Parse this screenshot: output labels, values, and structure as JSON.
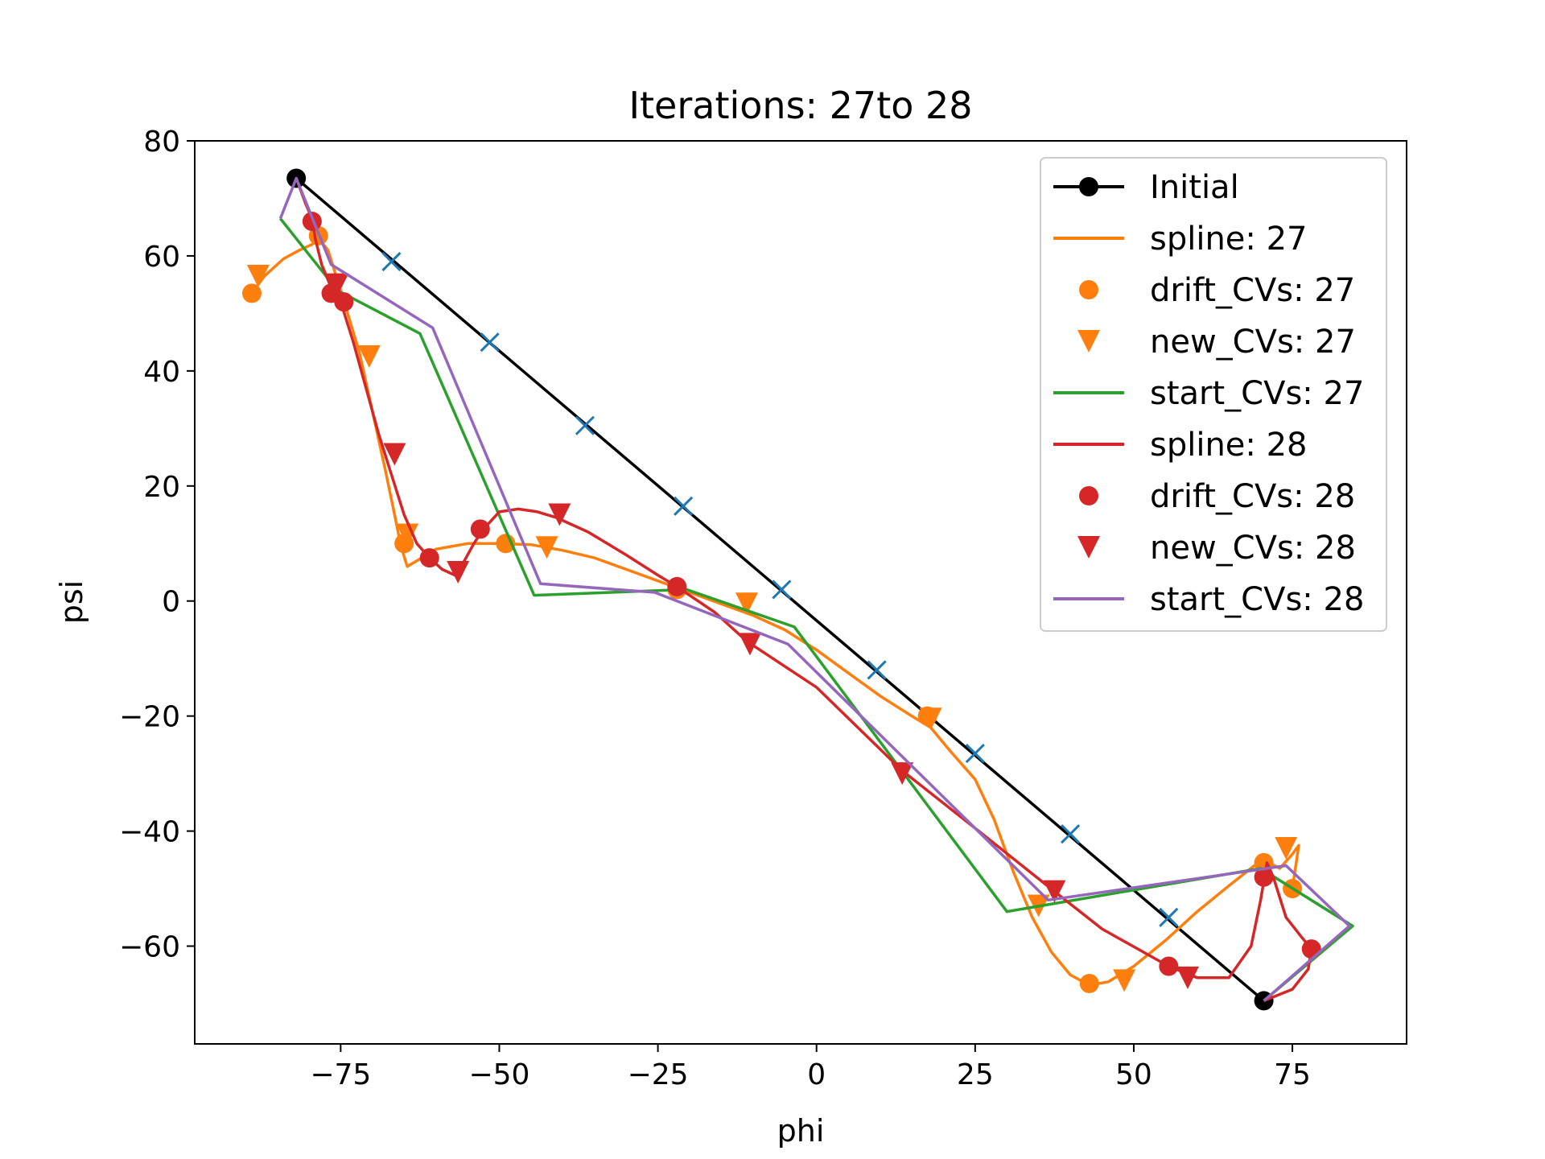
{
  "chart_data": {
    "type": "line",
    "title": "Iterations: 27to 28",
    "xlabel": "phi",
    "ylabel": "psi",
    "xlim": [
      -98,
      93
    ],
    "ylim": [
      -77,
      80
    ],
    "xticks": [
      -75,
      -50,
      -25,
      0,
      25,
      50,
      75
    ],
    "xtick_labels": [
      "−75",
      "−50",
      "−25",
      "0",
      "25",
      "50",
      "75"
    ],
    "yticks": [
      -60,
      -40,
      -20,
      0,
      20,
      40,
      60,
      80
    ],
    "ytick_labels": [
      "−60",
      "−40",
      "−20",
      "0",
      "20",
      "40",
      "60",
      "80"
    ],
    "legend_position": "top-right",
    "series": [
      {
        "name": "Initial",
        "kind": "line-marker",
        "color": "#000000",
        "x": [
          -82,
          70.5
        ],
        "y": [
          73.5,
          -69.5
        ]
      },
      {
        "name": "",
        "kind": "markers-x",
        "color": "#1f77b4",
        "x": [
          -67,
          -51.5,
          -36.5,
          -21,
          -5.5,
          9.5,
          25,
          40,
          55.5
        ],
        "y": [
          59,
          45,
          30.5,
          16.5,
          2,
          -12,
          -26.5,
          -40.5,
          -55
        ]
      },
      {
        "name": "spline: 27",
        "kind": "line",
        "color": "#ff7f0e",
        "x": [
          -89,
          -87,
          -84,
          -81.5,
          -79.5,
          -78.5,
          -77,
          -75,
          -72,
          -70,
          -68,
          -66.5,
          -65.5,
          -64.5,
          -63,
          -60,
          -55,
          -50,
          -45,
          -40,
          -35,
          -30,
          -25,
          -20,
          -15,
          -10,
          -5,
          0,
          5,
          10,
          15,
          18,
          21,
          25,
          28,
          31,
          34,
          37,
          40,
          43,
          46,
          50,
          55,
          60,
          65,
          69,
          71,
          73,
          75,
          76,
          75
        ],
        "y": [
          53.5,
          56.5,
          59.5,
          61,
          62,
          63,
          61,
          54,
          43,
          33,
          23,
          15,
          9.5,
          6,
          7,
          9,
          10,
          10,
          9.8,
          8.8,
          7.5,
          5.5,
          3.5,
          1.5,
          -0.5,
          -2.5,
          -5,
          -8.5,
          -12.5,
          -16.5,
          -20,
          -22,
          -26,
          -31,
          -38,
          -47,
          -55,
          -61,
          -65,
          -66.8,
          -66.2,
          -63.5,
          -59,
          -54,
          -49.5,
          -46,
          -45.3,
          -46.5,
          -44,
          -42.5,
          -50
        ]
      },
      {
        "name": "drift_CVs: 27",
        "kind": "markers-circle",
        "color": "#ff7f0e",
        "x": [
          -89,
          -78.5,
          -65,
          -49,
          -22,
          17.5,
          43,
          70.5,
          75
        ],
        "y": [
          53.5,
          63.5,
          10,
          10,
          2,
          -20,
          -66.5,
          -45.5,
          -50
        ]
      },
      {
        "name": "new_CVs: 27",
        "kind": "markers-triangle",
        "color": "#ff7f0e",
        "x": [
          -88,
          -70.5,
          -64.5,
          -42.5,
          -11,
          18,
          35,
          48.5,
          74
        ],
        "y": [
          56.5,
          42.5,
          11.5,
          9.3,
          -0.5,
          -20.5,
          -53,
          -66,
          -43
        ]
      },
      {
        "name": "start_CVs: 27",
        "kind": "line",
        "color": "#2ca02c",
        "x": [
          -84.5,
          -75.5,
          -62.5,
          -44.5,
          -20.5,
          -3.5,
          30,
          70,
          84.5,
          70.5
        ],
        "y": [
          66.5,
          54,
          46.5,
          1,
          2,
          -4.5,
          -54,
          -46.5,
          -56.5,
          -69.5
        ]
      },
      {
        "name": "spline: 28",
        "kind": "line",
        "color": "#d62728",
        "x": [
          -82,
          -80.5,
          -79.5,
          -79,
          -78,
          -76.5,
          -75,
          -73,
          -71,
          -69,
          -67,
          -65,
          -63,
          -61,
          -59,
          -57,
          -55.5,
          -54,
          -52.5,
          -50,
          -47,
          -44,
          -41,
          -36,
          -30,
          -25,
          -22,
          -16,
          -11,
          0,
          13.5,
          25,
          37.5,
          45,
          55.5,
          60,
          65,
          68.5,
          70,
          71,
          72,
          74,
          76.5,
          78,
          77.5,
          75,
          70.5
        ],
        "y": [
          73.5,
          69,
          66.5,
          63,
          58.5,
          54.5,
          52,
          45,
          37,
          29,
          22,
          15,
          10,
          7.5,
          5.5,
          4.5,
          7,
          10,
          12.5,
          15.5,
          16,
          15.5,
          14.5,
          12,
          8,
          4.5,
          2.5,
          -2,
          -7,
          -15,
          -29.5,
          -39.5,
          -50.5,
          -57,
          -63.5,
          -65.5,
          -65.5,
          -60,
          -52,
          -45.5,
          -48,
          -55,
          -58.5,
          -60.5,
          -64,
          -67.5,
          -69.5
        ]
      },
      {
        "name": "drift_CVs: 28",
        "kind": "markers-circle",
        "color": "#d62728",
        "x": [
          -79.5,
          -76.5,
          -74.5,
          -61,
          -53,
          -22,
          55.5,
          70.5,
          78
        ],
        "y": [
          66,
          53.5,
          52,
          7.5,
          12.5,
          2.5,
          -63.5,
          -48,
          -60.5
        ]
      },
      {
        "name": "new_CVs: 28",
        "kind": "markers-triangle",
        "color": "#d62728",
        "x": [
          -75.5,
          -66.5,
          -56.5,
          -40.5,
          -10.5,
          13.5,
          37.5,
          58.5
        ],
        "y": [
          55,
          25.5,
          5,
          15,
          -7.5,
          -30,
          -50.5,
          -65.5
        ]
      },
      {
        "name": "start_CVs: 28",
        "kind": "line",
        "color": "#9467bd",
        "x": [
          -84.5,
          -82,
          -76.5,
          -60.5,
          -43.5,
          -25.5,
          -4.5,
          36.5,
          74,
          84,
          70.5
        ],
        "y": [
          66.5,
          73.5,
          58.5,
          47.5,
          3,
          1.5,
          -7.5,
          -52,
          -46,
          -56.5,
          -69.5
        ]
      }
    ]
  }
}
